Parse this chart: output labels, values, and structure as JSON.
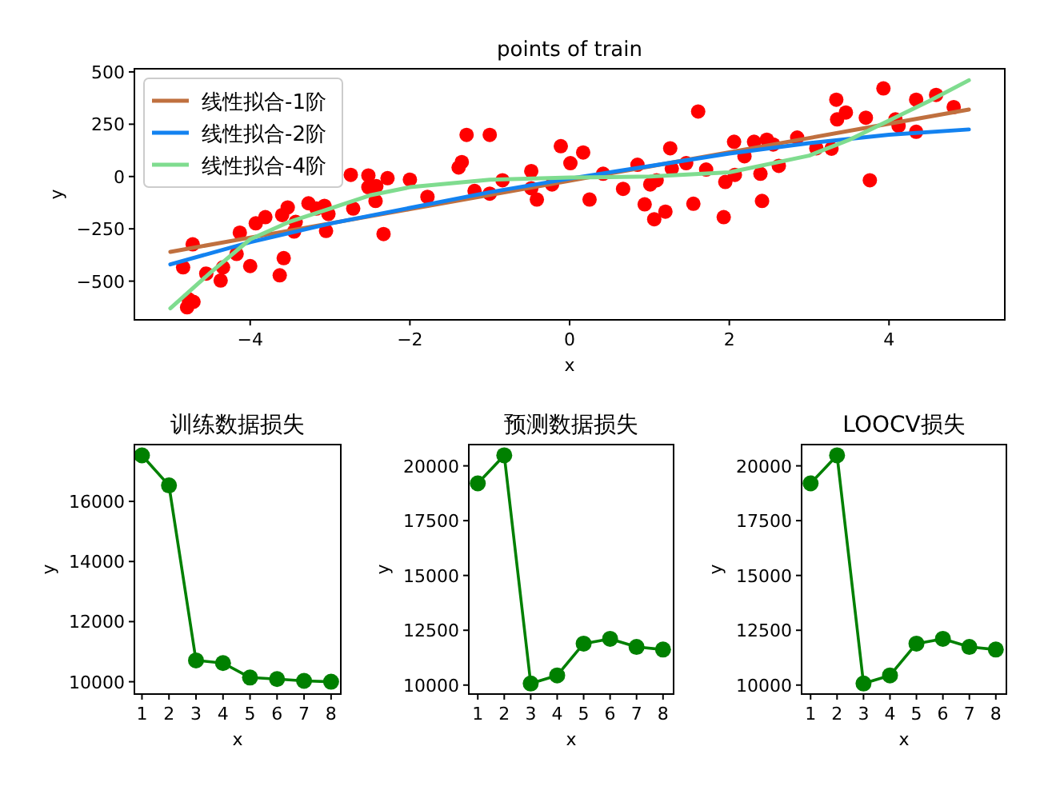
{
  "chart_data": [
    {
      "type": "scatter",
      "title": "points of train",
      "xlabel": "x",
      "ylabel": "y",
      "xlim": [
        -5.45,
        5.45
      ],
      "ylim": [
        -685,
        515
      ],
      "xticks": [
        -4,
        -2,
        0,
        2,
        4
      ],
      "yticks": [
        -500,
        -250,
        0,
        250,
        500
      ],
      "legend": "top left",
      "series": [
        {
          "type": "scatter",
          "color": "#ff0000",
          "marker": "circle",
          "x": [
            -4.84,
            -4.72,
            -4.77,
            -4.79,
            -4.71,
            -4.55,
            -4.37,
            -4.34,
            -4.17,
            -4.13,
            -4.0,
            -3.93,
            -3.81,
            -3.63,
            -3.58,
            -3.6,
            -3.53,
            -3.43,
            -3.45,
            -3.27,
            -3.17,
            -3.07,
            -3.02,
            -3.05,
            -2.74,
            -2.71,
            -2.52,
            -2.52,
            -2.42,
            -2.43,
            -2.28,
            -2.33,
            -2.0,
            -1.78,
            -1.39,
            -1.35,
            -1.29,
            -1.0,
            -1.19,
            -1.0,
            -0.84,
            -0.48,
            -0.48,
            -0.41,
            -0.22,
            -0.11,
            0.01,
            0.17,
            0.25,
            0.42,
            0.67,
            0.85,
            0.94,
            1.01,
            1.06,
            1.09,
            1.2,
            1.26,
            1.28,
            1.46,
            1.55,
            1.61,
            1.71,
            1.93,
            1.95,
            2.06,
            2.07,
            2.19,
            2.31,
            2.39,
            2.41,
            2.47,
            2.55,
            2.62,
            2.85,
            3.09,
            3.28,
            3.34,
            3.35,
            3.46,
            3.71,
            3.76,
            3.93,
            4.08,
            4.12,
            4.34,
            4.34,
            4.59,
            4.81
          ],
          "values": [
            -434,
            -324,
            -587,
            -625,
            -599,
            -464,
            -497,
            -434,
            -370,
            -268,
            -428,
            -224,
            -194,
            -472,
            -390,
            -184,
            -148,
            -217,
            -263,
            -128,
            -153,
            -140,
            -179,
            -260,
            8,
            -153,
            5,
            -51,
            -46,
            -117,
            -8,
            -275,
            -15,
            -97,
            43,
            69,
            199,
            199,
            -69,
            -82,
            -18,
            26,
            -56,
            -110,
            -38,
            145,
            64,
            115,
            -110,
            13,
            -59,
            56,
            -133,
            -38,
            -204,
            -18,
            -168,
            135,
            38,
            64,
            -130,
            311,
            33,
            -194,
            -26,
            166,
            8,
            97,
            166,
            13,
            -117,
            176,
            153,
            51,
            186,
            135,
            133,
            367,
            273,
            306,
            281,
            -18,
            421,
            273,
            242,
            367,
            214,
            390,
            332
          ]
        },
        {
          "type": "line",
          "name": "线性拟合-1阶",
          "color": "#c0703f",
          "marker": "none",
          "x": [
            -5,
            -4,
            -3,
            -2,
            -1,
            0,
            1,
            2,
            3,
            4,
            5
          ],
          "values": [
            -360,
            -292,
            -224,
            -156,
            -88,
            -20,
            48,
            116,
            184,
            252,
            320
          ]
        },
        {
          "type": "line",
          "name": "线性拟合-2阶",
          "color": "#1382f0",
          "marker": "none",
          "x": [
            -5,
            -4,
            -3,
            -2,
            -1,
            0,
            1,
            2,
            3,
            4,
            5
          ],
          "values": [
            -420,
            -314,
            -225,
            -150,
            -75,
            -10,
            50,
            110,
            160,
            200,
            225
          ]
        },
        {
          "type": "line",
          "name": "线性拟合-4阶",
          "color": "#7fdc8f",
          "marker": "none",
          "x": [
            -5,
            -4.5,
            -4,
            -3.5,
            -3,
            -2.5,
            -2,
            -1,
            0,
            1,
            2,
            3,
            3.5,
            4,
            4.5,
            5
          ],
          "values": [
            -630,
            -460,
            -300,
            -215,
            -153,
            -90,
            -51,
            -15,
            -5,
            0,
            20,
            100,
            175,
            268,
            360,
            460
          ]
        }
      ]
    },
    {
      "type": "line",
      "title": "训练数据损失",
      "xlabel": "x",
      "ylabel": "y",
      "xlim": [
        0.72,
        8.36
      ],
      "ylim": [
        9590,
        17890
      ],
      "xticks": [
        1,
        2,
        3,
        4,
        5,
        6,
        7,
        8
      ],
      "yticks": [
        10000,
        12000,
        14000,
        16000
      ],
      "marker": "circle",
      "series": [
        {
          "color": "#008000",
          "x": [
            1,
            2,
            3,
            4,
            5,
            6,
            7,
            8
          ],
          "values": [
            17530,
            16530,
            10710,
            10620,
            10140,
            10090,
            10030,
            10000
          ]
        }
      ]
    },
    {
      "type": "line",
      "title": "预测数据损失",
      "xlabel": "x",
      "ylabel": "y",
      "xlim": [
        0.66,
        8.4
      ],
      "ylim": [
        9590,
        20970
      ],
      "xticks": [
        1,
        2,
        3,
        4,
        5,
        6,
        7,
        8
      ],
      "yticks": [
        10000,
        12500,
        15000,
        17500,
        20000
      ],
      "marker": "circle",
      "series": [
        {
          "color": "#008000",
          "x": [
            1,
            2,
            3,
            4,
            5,
            6,
            7,
            8
          ],
          "values": [
            19200,
            20480,
            10070,
            10440,
            11890,
            12110,
            11740,
            11620
          ]
        }
      ]
    },
    {
      "type": "line",
      "title": "LOOCV损失",
      "xlabel": "x",
      "ylabel": "y",
      "xlim": [
        0.66,
        8.4
      ],
      "ylim": [
        9590,
        20970
      ],
      "xticks": [
        1,
        2,
        3,
        4,
        5,
        6,
        7,
        8
      ],
      "yticks": [
        10000,
        12500,
        15000,
        17500,
        20000
      ],
      "marker": "circle",
      "series": [
        {
          "color": "#008000",
          "x": [
            1,
            2,
            3,
            4,
            5,
            6,
            7,
            8
          ],
          "values": [
            19200,
            20480,
            10070,
            10440,
            11890,
            12110,
            11740,
            11620
          ]
        }
      ]
    }
  ]
}
